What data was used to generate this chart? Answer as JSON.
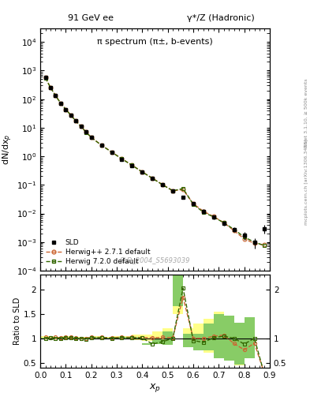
{
  "title_left": "91 GeV ee",
  "title_right": "γ*/Z (Hadronic)",
  "main_title": "π spectrum (π±, b-events)",
  "watermark": "SLD_2004_S5693039",
  "right_label_top": "Rivet 3.1.10, ≥ 500k events",
  "right_label_bot": "mcplots.cern.ch [arXiv:1306.3438]",
  "xlabel": "$x_p$",
  "ylabel_main": "dN/dx$_p$",
  "ylabel_ratio": "Ratio to SLD",
  "sld_x": [
    0.02,
    0.04,
    0.06,
    0.08,
    0.1,
    0.12,
    0.14,
    0.16,
    0.18,
    0.2,
    0.24,
    0.28,
    0.32,
    0.36,
    0.4,
    0.44,
    0.48,
    0.52,
    0.56,
    0.6,
    0.64,
    0.68,
    0.72,
    0.76,
    0.8,
    0.84,
    0.88
  ],
  "sld_y": [
    560,
    250,
    130,
    72,
    43,
    27,
    17,
    11,
    7.0,
    4.5,
    2.4,
    1.4,
    0.8,
    0.48,
    0.28,
    0.17,
    0.1,
    0.062,
    0.037,
    0.022,
    0.012,
    0.0075,
    0.0045,
    0.0028,
    0.0017,
    0.001,
    0.003
  ],
  "sld_yerr_lo": [
    20,
    10,
    5,
    3,
    2,
    1,
    0.8,
    0.5,
    0.3,
    0.2,
    0.1,
    0.07,
    0.04,
    0.025,
    0.015,
    0.009,
    0.006,
    0.004,
    0.003,
    0.003,
    0.002,
    0.0012,
    0.0008,
    0.0006,
    0.0005,
    0.0004,
    0.001
  ],
  "sld_yerr_hi": [
    20,
    10,
    5,
    3,
    2,
    1,
    0.8,
    0.5,
    0.3,
    0.2,
    0.1,
    0.07,
    0.04,
    0.025,
    0.015,
    0.009,
    0.006,
    0.004,
    0.003,
    0.003,
    0.002,
    0.0012,
    0.0008,
    0.0006,
    0.0005,
    0.0004,
    0.001
  ],
  "hw271_x": [
    0.02,
    0.04,
    0.06,
    0.08,
    0.1,
    0.12,
    0.14,
    0.16,
    0.18,
    0.2,
    0.24,
    0.28,
    0.32,
    0.36,
    0.4,
    0.44,
    0.48,
    0.52,
    0.56,
    0.6,
    0.64,
    0.68,
    0.72,
    0.76,
    0.8,
    0.84,
    0.88
  ],
  "hw271_y": [
    560,
    255,
    132,
    73,
    44,
    27.5,
    17.2,
    11.0,
    7.0,
    4.6,
    2.45,
    1.42,
    0.82,
    0.49,
    0.285,
    0.172,
    0.102,
    0.063,
    0.068,
    0.022,
    0.012,
    0.0078,
    0.0048,
    0.0025,
    0.0013,
    0.0009,
    0.0008
  ],
  "hw720_x": [
    0.02,
    0.04,
    0.06,
    0.08,
    0.1,
    0.12,
    0.14,
    0.16,
    0.18,
    0.2,
    0.24,
    0.28,
    0.32,
    0.36,
    0.4,
    0.44,
    0.48,
    0.52,
    0.56,
    0.6,
    0.64,
    0.68,
    0.72,
    0.76,
    0.8,
    0.84,
    0.88
  ],
  "hw720_y": [
    555,
    252,
    130,
    72,
    43.5,
    27.2,
    17.0,
    10.9,
    6.9,
    4.55,
    2.43,
    1.4,
    0.81,
    0.485,
    0.282,
    0.17,
    0.1,
    0.062,
    0.075,
    0.021,
    0.011,
    0.0076,
    0.0047,
    0.0028,
    0.0015,
    0.001,
    0.00075
  ],
  "sld_color": "#000000",
  "hw271_color": "#cc6633",
  "hw720_color": "#336600",
  "hw271_band_color": "#ffff88",
  "hw720_band_color": "#88cc66",
  "band_x_lo": [
    0.0,
    0.02,
    0.04,
    0.06,
    0.08,
    0.1,
    0.12,
    0.14,
    0.16,
    0.18,
    0.2,
    0.24,
    0.28,
    0.32,
    0.36,
    0.4,
    0.44,
    0.48,
    0.52,
    0.56,
    0.6,
    0.64,
    0.68,
    0.72,
    0.76,
    0.8,
    0.84
  ],
  "band_x_hi": [
    0.02,
    0.04,
    0.06,
    0.08,
    0.1,
    0.12,
    0.14,
    0.16,
    0.18,
    0.2,
    0.24,
    0.28,
    0.32,
    0.36,
    0.4,
    0.44,
    0.48,
    0.52,
    0.56,
    0.6,
    0.64,
    0.68,
    0.72,
    0.76,
    0.8,
    0.84,
    0.9
  ],
  "ratio_hw271": [
    1.02,
    1.01,
    1.02,
    1.01,
    1.02,
    1.02,
    1.01,
    1.0,
    1.0,
    1.02,
    1.02,
    1.01,
    1.025,
    1.02,
    1.018,
    1.012,
    1.02,
    1.016,
    1.84,
    1.0,
    1.0,
    1.04,
    1.067,
    0.893,
    0.765,
    0.9,
    0.267
  ],
  "ratio_hw720": [
    0.991,
    1.008,
    1.0,
    1.0,
    1.012,
    1.007,
    1.0,
    0.991,
    0.986,
    1.011,
    1.013,
    1.0,
    1.0125,
    1.01,
    1.007,
    0.882,
    0.93,
    1.0,
    2.027,
    0.955,
    0.917,
    1.013,
    1.044,
    1.0,
    0.882,
    1.0,
    0.25
  ],
  "ratio_hw271_band_lo": [
    1.0,
    0.99,
    0.99,
    0.99,
    0.99,
    0.99,
    0.99,
    0.99,
    0.99,
    0.99,
    0.99,
    0.99,
    1.0,
    1.0,
    0.97,
    0.95,
    0.9,
    0.88,
    1.5,
    0.85,
    0.75,
    0.7,
    0.6,
    0.55,
    0.45,
    0.6,
    0.18
  ],
  "ratio_hw271_band_hi": [
    1.05,
    1.04,
    1.04,
    1.03,
    1.04,
    1.04,
    1.03,
    1.02,
    1.02,
    1.03,
    1.04,
    1.03,
    1.05,
    1.05,
    1.07,
    1.08,
    1.14,
    1.2,
    2.2,
    1.2,
    1.3,
    1.4,
    1.55,
    1.25,
    1.1,
    1.2,
    0.38
  ],
  "ratio_hw720_band_lo": [
    0.99,
    0.985,
    0.99,
    0.99,
    0.995,
    0.995,
    0.99,
    0.982,
    0.978,
    0.99,
    0.99,
    0.988,
    0.995,
    0.995,
    0.982,
    0.862,
    0.875,
    0.87,
    1.65,
    0.82,
    0.75,
    0.75,
    0.6,
    0.55,
    0.46,
    0.6,
    0.19
  ],
  "ratio_hw720_band_hi": [
    1.01,
    1.03,
    1.01,
    1.01,
    1.02,
    1.015,
    1.01,
    1.01,
    1.0,
    1.025,
    1.03,
    1.01,
    1.025,
    1.02,
    1.03,
    0.905,
    0.99,
    1.135,
    2.4,
    1.09,
    1.09,
    1.3,
    1.5,
    1.47,
    1.32,
    1.43,
    0.32
  ],
  "ylim_main": [
    0.0001,
    30000.0
  ],
  "ylim_ratio": [
    0.4,
    2.3
  ],
  "xlim": [
    0.0,
    0.9
  ]
}
